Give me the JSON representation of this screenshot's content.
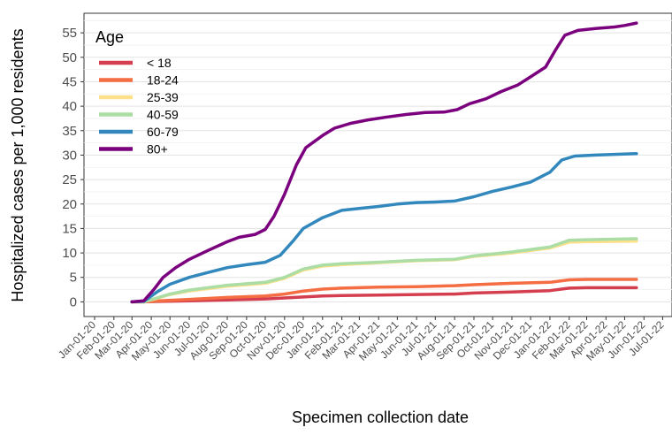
{
  "chart_data": {
    "type": "line",
    "xlabel": "Specimen collection date",
    "ylabel": "Hospitalized cases per 1,000 residents",
    "ylim": [
      -3,
      59
    ],
    "y_ticks": [
      0,
      5,
      10,
      15,
      20,
      25,
      30,
      35,
      40,
      45,
      50,
      55
    ],
    "x_ticks": [
      "Jan-01-20",
      "Feb-01-20",
      "Mar-01-20",
      "Apr-01-20",
      "May-01-20",
      "Jun-01-20",
      "Jul-01-20",
      "Aug-01-20",
      "Sep-01-20",
      "Oct-01-20",
      "Nov-01-20",
      "Dec-01-20",
      "Jan-01-21",
      "Feb-01-21",
      "Mar-01-21",
      "Apr-01-21",
      "May-01-21",
      "Jun-01-21",
      "Jul-01-21",
      "Aug-01-21",
      "Sep-01-21",
      "Oct-01-21",
      "Nov-01-21",
      "Dec-01-21",
      "Jan-01-22",
      "Feb-01-22",
      "Mar-01-22",
      "Apr-01-22",
      "May-01-22",
      "Jun-01-22",
      "Jul-01-22"
    ],
    "xlim": [
      "2019-12-15",
      "2022-07-16"
    ],
    "grid": true,
    "legend": {
      "title": "Age",
      "position": "top-left"
    },
    "series": [
      {
        "name": "< 18",
        "color": "#d53e4f",
        "points": [
          [
            "2020-03-01",
            0
          ],
          [
            "2020-03-20",
            0
          ],
          [
            "2020-04-15",
            0.1
          ],
          [
            "2020-06-01",
            0.2
          ],
          [
            "2020-08-01",
            0.4
          ],
          [
            "2020-10-01",
            0.6
          ],
          [
            "2020-11-01",
            0.8
          ],
          [
            "2020-12-01",
            1.0
          ],
          [
            "2021-01-01",
            1.2
          ],
          [
            "2021-02-01",
            1.3
          ],
          [
            "2021-04-01",
            1.4
          ],
          [
            "2021-06-01",
            1.5
          ],
          [
            "2021-08-01",
            1.6
          ],
          [
            "2021-09-01",
            1.8
          ],
          [
            "2021-11-01",
            2.0
          ],
          [
            "2022-01-01",
            2.3
          ],
          [
            "2022-02-01",
            2.8
          ],
          [
            "2022-03-01",
            2.9
          ],
          [
            "2022-05-20",
            2.9
          ]
        ]
      },
      {
        "name": "18-24",
        "color": "#f46d43",
        "points": [
          [
            "2020-03-01",
            0
          ],
          [
            "2020-03-20",
            0
          ],
          [
            "2020-04-15",
            0.2
          ],
          [
            "2020-06-01",
            0.5
          ],
          [
            "2020-08-01",
            0.9
          ],
          [
            "2020-10-01",
            1.2
          ],
          [
            "2020-11-01",
            1.6
          ],
          [
            "2020-12-01",
            2.2
          ],
          [
            "2021-01-01",
            2.6
          ],
          [
            "2021-02-01",
            2.8
          ],
          [
            "2021-04-01",
            3.0
          ],
          [
            "2021-06-01",
            3.1
          ],
          [
            "2021-08-01",
            3.3
          ],
          [
            "2021-09-01",
            3.5
          ],
          [
            "2021-11-01",
            3.8
          ],
          [
            "2022-01-01",
            4.0
          ],
          [
            "2022-02-01",
            4.5
          ],
          [
            "2022-03-01",
            4.6
          ],
          [
            "2022-05-20",
            4.6
          ]
        ]
      },
      {
        "name": "25-39",
        "color": "#fee08b",
        "points": [
          [
            "2020-03-01",
            0
          ],
          [
            "2020-03-20",
            0
          ],
          [
            "2020-04-10",
            0.7
          ],
          [
            "2020-05-01",
            1.5
          ],
          [
            "2020-06-01",
            2.2
          ],
          [
            "2020-08-01",
            3.2
          ],
          [
            "2020-10-01",
            3.8
          ],
          [
            "2020-11-01",
            4.8
          ],
          [
            "2020-12-01",
            6.5
          ],
          [
            "2021-01-01",
            7.3
          ],
          [
            "2021-02-01",
            7.6
          ],
          [
            "2021-04-01",
            8.0
          ],
          [
            "2021-06-01",
            8.4
          ],
          [
            "2021-08-01",
            8.6
          ],
          [
            "2021-09-01",
            9.3
          ],
          [
            "2021-11-01",
            10.0
          ],
          [
            "2022-01-01",
            11.0
          ],
          [
            "2022-02-01",
            12.2
          ],
          [
            "2022-03-01",
            12.3
          ],
          [
            "2022-05-20",
            12.4
          ]
        ]
      },
      {
        "name": "40-59",
        "color": "#abdda4",
        "points": [
          [
            "2020-03-01",
            0
          ],
          [
            "2020-03-20",
            0
          ],
          [
            "2020-04-10",
            0.8
          ],
          [
            "2020-05-01",
            1.6
          ],
          [
            "2020-06-01",
            2.4
          ],
          [
            "2020-08-01",
            3.4
          ],
          [
            "2020-10-01",
            4.0
          ],
          [
            "2020-11-01",
            5.0
          ],
          [
            "2020-12-01",
            6.7
          ],
          [
            "2021-01-01",
            7.5
          ],
          [
            "2021-02-01",
            7.8
          ],
          [
            "2021-04-01",
            8.1
          ],
          [
            "2021-06-01",
            8.5
          ],
          [
            "2021-08-01",
            8.7
          ],
          [
            "2021-09-01",
            9.4
          ],
          [
            "2021-11-01",
            10.2
          ],
          [
            "2022-01-01",
            11.2
          ],
          [
            "2022-02-01",
            12.6
          ],
          [
            "2022-03-01",
            12.7
          ],
          [
            "2022-05-20",
            12.9
          ]
        ]
      },
      {
        "name": "60-79",
        "color": "#3288bd",
        "points": [
          [
            "2020-03-01",
            0
          ],
          [
            "2020-03-20",
            0.1
          ],
          [
            "2020-04-10",
            2.0
          ],
          [
            "2020-05-01",
            3.6
          ],
          [
            "2020-06-01",
            5.0
          ],
          [
            "2020-07-01",
            6.0
          ],
          [
            "2020-08-01",
            7.0
          ],
          [
            "2020-09-01",
            7.6
          ],
          [
            "2020-10-01",
            8.1
          ],
          [
            "2020-10-25",
            9.5
          ],
          [
            "2020-11-15",
            12.5
          ],
          [
            "2020-12-01",
            15.0
          ],
          [
            "2021-01-01",
            17.2
          ],
          [
            "2021-02-01",
            18.7
          ],
          [
            "2021-03-01",
            19.1
          ],
          [
            "2021-04-01",
            19.5
          ],
          [
            "2021-05-01",
            20.0
          ],
          [
            "2021-06-01",
            20.3
          ],
          [
            "2021-07-01",
            20.4
          ],
          [
            "2021-08-01",
            20.6
          ],
          [
            "2021-09-01",
            21.5
          ],
          [
            "2021-10-01",
            22.6
          ],
          [
            "2021-11-01",
            23.5
          ],
          [
            "2021-12-01",
            24.5
          ],
          [
            "2022-01-01",
            26.5
          ],
          [
            "2022-01-20",
            29.0
          ],
          [
            "2022-02-10",
            29.8
          ],
          [
            "2022-03-15",
            30.0
          ],
          [
            "2022-05-20",
            30.3
          ]
        ]
      },
      {
        "name": "80+",
        "color": "#7b007e",
        "points": [
          [
            "2020-03-01",
            0
          ],
          [
            "2020-03-20",
            0.2
          ],
          [
            "2020-04-05",
            2.5
          ],
          [
            "2020-04-20",
            5.0
          ],
          [
            "2020-05-10",
            7.0
          ],
          [
            "2020-06-01",
            8.7
          ],
          [
            "2020-07-01",
            10.5
          ],
          [
            "2020-08-01",
            12.3
          ],
          [
            "2020-08-20",
            13.2
          ],
          [
            "2020-09-15",
            13.8
          ],
          [
            "2020-10-01",
            14.8
          ],
          [
            "2020-10-15",
            17.5
          ],
          [
            "2020-11-01",
            22.0
          ],
          [
            "2020-11-20",
            28.0
          ],
          [
            "2020-12-05",
            31.5
          ],
          [
            "2021-01-01",
            34.0
          ],
          [
            "2021-01-20",
            35.5
          ],
          [
            "2021-02-15",
            36.5
          ],
          [
            "2021-03-15",
            37.2
          ],
          [
            "2021-04-15",
            37.8
          ],
          [
            "2021-05-15",
            38.3
          ],
          [
            "2021-06-15",
            38.7
          ],
          [
            "2021-07-15",
            38.8
          ],
          [
            "2021-08-05",
            39.3
          ],
          [
            "2021-08-25",
            40.5
          ],
          [
            "2021-09-20",
            41.5
          ],
          [
            "2021-10-15",
            43.0
          ],
          [
            "2021-11-10",
            44.3
          ],
          [
            "2021-12-01",
            46.0
          ],
          [
            "2021-12-25",
            48.0
          ],
          [
            "2022-01-10",
            51.5
          ],
          [
            "2022-01-25",
            54.5
          ],
          [
            "2022-02-15",
            55.5
          ],
          [
            "2022-03-15",
            55.9
          ],
          [
            "2022-04-15",
            56.2
          ],
          [
            "2022-05-01",
            56.5
          ],
          [
            "2022-05-20",
            57.0
          ]
        ]
      }
    ]
  }
}
